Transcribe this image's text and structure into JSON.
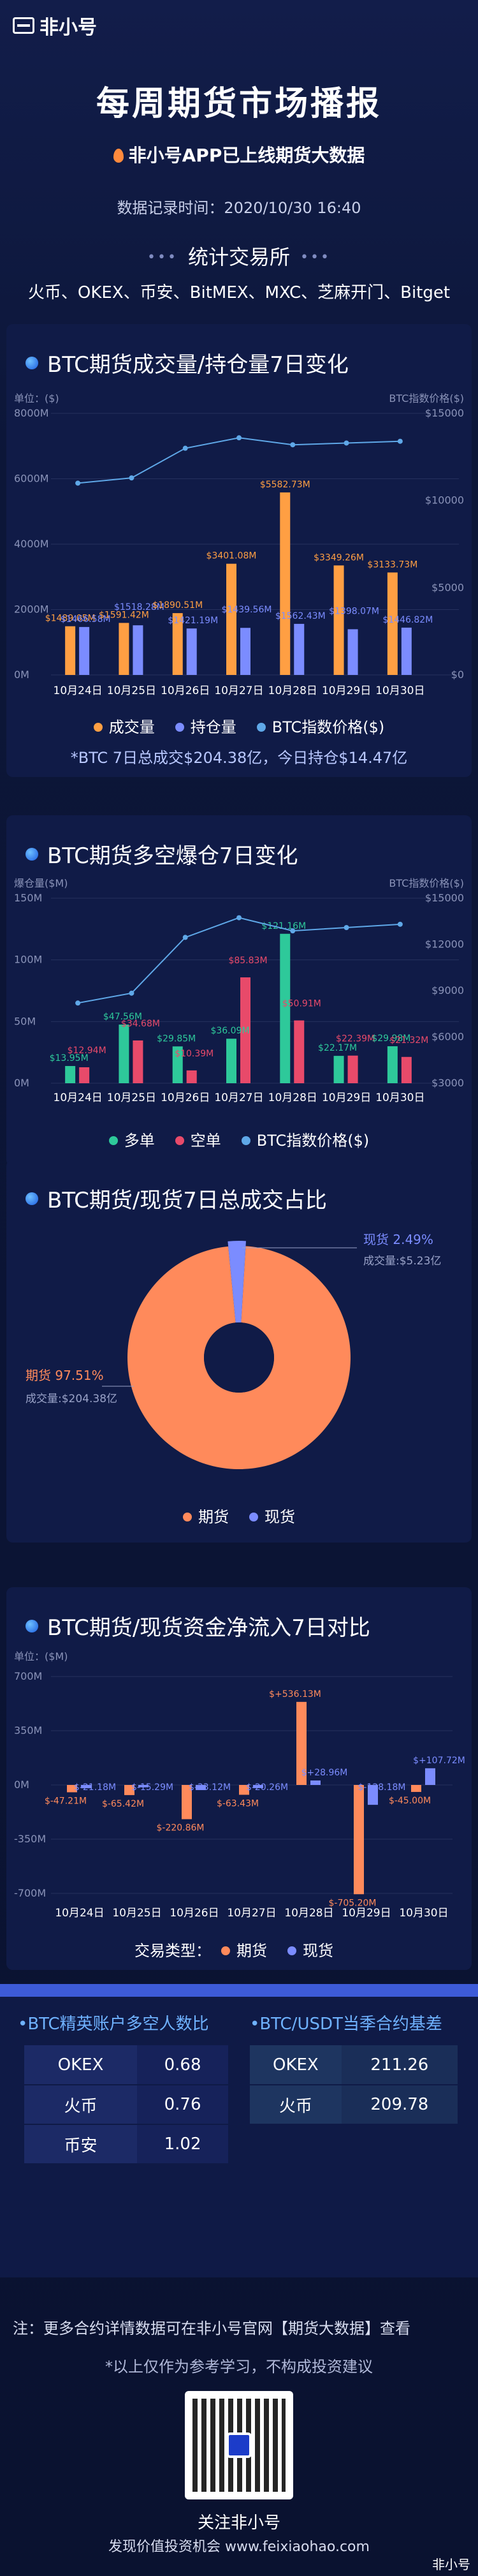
{
  "brand": "非小号",
  "title": "每周期货市场播报",
  "subtitle": "非小号APP已上线期货大数据",
  "date": "数据记录时间：2020/10/30 16:40",
  "stat_head": "统计交易所",
  "exchanges": "火币、OKEX、币安、BitMEX、MXC、芝麻开门、Bitget",
  "chart_data": [
    {
      "type": "bar",
      "title": "BTC期货成交量/持仓量7日变化",
      "yleft_unit": "单位：($)",
      "yright_unit": "BTC指数价格($)",
      "categories": [
        "10月24日",
        "10月25日",
        "10月26日",
        "10月27日",
        "10月28日",
        "10月29日",
        "10月30日"
      ],
      "ylim": [
        0,
        8000
      ],
      "yticks": [
        "0M",
        "2000M",
        "4000M",
        "6000M",
        "8000M"
      ],
      "y2lim": [
        0,
        15000
      ],
      "y2ticks": [
        "$0",
        "$5000",
        "$10000",
        "$15000"
      ],
      "series": [
        {
          "name": "成交量",
          "color": "#ff9f43",
          "values": [
            1489.05,
            1591.42,
            1890.51,
            3401.08,
            5582.73,
            3349.26,
            3133.73
          ],
          "labels": [
            "$1489.05M",
            "$1591.42M",
            "$1890.51M",
            "$3401.08M",
            "$5582.73M",
            "$3349.26M",
            "$3133.73M"
          ]
        },
        {
          "name": "持仓量",
          "color": "#7b8cff",
          "values": [
            1466.58,
            1518.28,
            1421.19,
            1439.56,
            1562.43,
            1398.07,
            1446.82
          ],
          "labels": [
            "$1466.58M",
            "$1518.28M",
            "$1421.19M",
            "$1439.56M",
            "$1562.43M",
            "$1398.07M",
            "$1446.82M"
          ]
        },
        {
          "name": "BTC指数价格($)",
          "color": "#5fa8e8",
          "values": [
            11000,
            11300,
            13000,
            13600,
            13200,
            13300,
            13400
          ]
        }
      ],
      "note": "*BTC 7日总成交$204.38亿，今日持仓$14.47亿"
    },
    {
      "type": "bar",
      "title": "BTC期货多空爆仓7日变化",
      "yleft_unit": "爆仓量($M)",
      "yright_unit": "BTC指数价格($)",
      "categories": [
        "10月24日",
        "10月25日",
        "10月26日",
        "10月27日",
        "10月28日",
        "10月29日",
        "10月30日"
      ],
      "ylim": [
        0,
        150
      ],
      "yticks": [
        "0M",
        "50M",
        "100M",
        "150M"
      ],
      "y2lim": [
        0,
        15000
      ],
      "y2ticks": [
        "$3000",
        "$6000",
        "$9000",
        "$12000",
        "$15000"
      ],
      "series": [
        {
          "name": "多单",
          "color": "#2ec99a",
          "values": [
            13.95,
            47.56,
            29.85,
            36.09,
            121.16,
            22.17,
            29.98
          ],
          "labels": [
            "$13.95M",
            "$47.56M",
            "$29.85M",
            "$36.09M",
            "$121.16M",
            "$22.17M",
            "$29.98M"
          ]
        },
        {
          "name": "空单",
          "color": "#e84a6a",
          "values": [
            12.94,
            34.68,
            10.39,
            85.83,
            50.91,
            22.39,
            21.32
          ],
          "labels": [
            "$12.94M",
            "$34.68M",
            "$10.39M",
            "$85.83M",
            "$50.91M",
            "$22.39M",
            "$21.32M"
          ]
        },
        {
          "name": "BTC指数价格($)",
          "color": "#5fa8e8",
          "values": [
            11000,
            11300,
            13000,
            13600,
            13200,
            13300,
            13400
          ]
        }
      ]
    },
    {
      "type": "pie",
      "title": "BTC期货/现货7日总成交占比",
      "slices": [
        {
          "name": "期货",
          "label": "期货 97.51%",
          "value": 97.51,
          "volume": "成交量:$204.38亿",
          "color": "#ff8a5b"
        },
        {
          "name": "现货",
          "label": "现货 2.49%",
          "value": 2.49,
          "volume": "成交量:$5.23亿",
          "color": "#7b8cff"
        }
      ]
    },
    {
      "type": "bar",
      "title": "BTC期货/现货资金净流入7日对比",
      "yleft_unit": "单位：($M)",
      "categories": [
        "10月24日",
        "10月25日",
        "10月26日",
        "10月27日",
        "10月28日",
        "10月29日",
        "10月30日"
      ],
      "ylim": [
        -700,
        700
      ],
      "yticks": [
        "700M",
        "350M",
        "0M",
        "-350M",
        "-700M"
      ],
      "legend_prefix": "交易类型：",
      "series": [
        {
          "name": "期货",
          "color": "#ff8a5b",
          "values": [
            -47.21,
            -65.42,
            -220.86,
            -63.43,
            536.13,
            -705.2,
            -45.0
          ],
          "labels": [
            "$-47.21M",
            "$-65.42M",
            "$-220.86M",
            "$-63.43M",
            "$+536.13M",
            "$-705.20M",
            "$-45.00M"
          ]
        },
        {
          "name": "现货",
          "color": "#7b8cff",
          "values": [
            -21.18,
            -15.29,
            -33.12,
            -20.26,
            28.96,
            -128.18,
            107.72
          ],
          "labels": [
            "$-21.18M",
            "$-15.29M",
            "$-33.12M",
            "$-20.26M",
            "$+28.96M",
            "$-128.18M",
            "$+107.72M"
          ]
        }
      ]
    }
  ],
  "ratio_table": {
    "title": "•BTC精英账户多空人数比",
    "rows": [
      [
        "OKEX",
        "0.68"
      ],
      [
        "火币",
        "0.76"
      ],
      [
        "币安",
        "1.02"
      ]
    ]
  },
  "basis_table": {
    "title": "•BTC/USDT当季合约基差",
    "rows": [
      [
        "OKEX",
        "211.26"
      ],
      [
        "火币",
        "209.78"
      ]
    ]
  },
  "footer_note": "注：更多合约详情数据可在非小号官网【期货大数据】查看",
  "disclaimer": "*以上仅作为参考学习，不构成投资建议",
  "follow": "关注非小号",
  "follow_sub": "发现价值投资机会",
  "site": "www.feixiaohao.com",
  "corner_brand": "非小号"
}
